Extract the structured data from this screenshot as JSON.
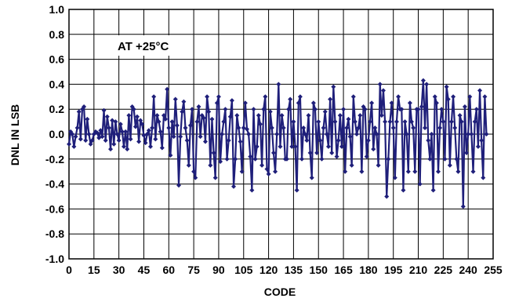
{
  "chart_data": {
    "type": "line",
    "title": "",
    "annotation": "AT +25°C",
    "xlabel": "CODE",
    "ylabel": "DNL IN LSB",
    "xlim": [
      0,
      255
    ],
    "ylim": [
      -1.0,
      1.0
    ],
    "grid": true,
    "line_color": "#1f1f7a",
    "x_ticks": [
      "0",
      "15",
      "30",
      "45",
      "60",
      "75",
      "90",
      "105",
      "120",
      "135",
      "150",
      "165",
      "180",
      "195",
      "210",
      "225",
      "240",
      "255"
    ],
    "y_ticks": [
      "1.0",
      "0.8",
      "0.6",
      "0.4",
      "0.2",
      "0.0",
      "-0.2",
      "-0.4",
      "-0.6",
      "-0.8",
      "-1.0"
    ],
    "series": [
      {
        "values": [
          -0.08,
          0.02,
          0.0,
          -0.1,
          -0.02,
          0.05,
          0.18,
          -0.04,
          0.2,
          0.22,
          -0.05,
          0.12,
          0.0,
          -0.08,
          -0.05,
          0.0,
          0.02,
          0.01,
          -0.03,
          0.03,
          -0.02,
          0.19,
          -0.05,
          0.14,
          0.05,
          -0.12,
          0.11,
          -0.08,
          0.1,
          0.0,
          -0.05,
          0.08,
          0.02,
          -0.1,
          0.02,
          -0.12,
          0.15,
          -0.04,
          0.22,
          0.2,
          0.06,
          0.14,
          -0.06,
          0.11,
          0.08,
          -0.01,
          -0.07,
          0.0,
          0.03,
          -0.1,
          0.05,
          0.3,
          -0.04,
          0.15,
          0.1,
          0.02,
          -0.11,
          0.15,
          0.12,
          0.36,
          0.05,
          -0.17,
          0.1,
          -0.02,
          0.28,
          0.07,
          -0.41,
          -0.02,
          0.18,
          0.26,
          0.05,
          -0.05,
          -0.25,
          0.07,
          0.2,
          -0.3,
          -0.35,
          0.1,
          0.22,
          -0.02,
          0.15,
          0.13,
          -0.06,
          0.3,
          0.18,
          -0.25,
          0.12,
          -0.15,
          -0.35,
          0.25,
          0.3,
          -0.22,
          0.0,
          0.1,
          0.2,
          -0.2,
          -0.05,
          0.14,
          0.27,
          -0.42,
          -0.2,
          0.15,
          0.05,
          -0.06,
          -0.3,
          0.05,
          0.25,
          0.04,
          0.0,
          -0.18,
          -0.45,
          0.2,
          -0.2,
          -0.1,
          0.15,
          0.08,
          -0.25,
          0.2,
          0.3,
          -0.28,
          -0.32,
          0.18,
          0.05,
          -0.15,
          -0.3,
          0.0,
          0.4,
          -0.1,
          0.15,
          0.05,
          -0.2,
          -0.2,
          0.2,
          0.28,
          -0.1,
          0.1,
          -0.1,
          -0.45,
          0.25,
          0.3,
          -0.2,
          0.05,
          0.0,
          -0.05,
          0.15,
          -0.15,
          -0.35,
          0.25,
          0.2,
          -0.15,
          0.1,
          -0.05,
          -0.2,
          0.05,
          0.18,
          0.0,
          -0.1,
          0.28,
          -0.15,
          0.38,
          0.1,
          -0.18,
          -0.05,
          0.15,
          -0.1,
          0.2,
          -0.3,
          0.05,
          0.12,
          -0.02,
          -0.25,
          0.3,
          0.1,
          0.0,
          0.05,
          0.15,
          -0.3,
          0.22,
          0.2,
          -0.18,
          -0.05,
          0.1,
          0.25,
          -0.12,
          0.05,
          0.0,
          -0.25,
          0.4,
          0.15,
          0.35,
          0.1,
          -0.5,
          -0.2,
          0.1,
          0.25,
          0.05,
          -0.35,
          0.1,
          0.3,
          0.2,
          0.2,
          -0.45,
          0.1,
          0.0,
          -0.3,
          0.25,
          0.1,
          0.05,
          -0.3,
          0.2,
          0.2,
          -0.4,
          0.22,
          0.43,
          0.05,
          0.4,
          -0.05,
          -0.2,
          0.0,
          -0.45,
          0.3,
          0.25,
          -0.3,
          0.05,
          0.2,
          0.1,
          -0.2,
          0.38,
          0.28,
          -0.25,
          0.1,
          0.3,
          0.05,
          -0.2,
          -0.3,
          0.15,
          0.1,
          -0.58,
          0.22,
          -0.15,
          0.0,
          0.3,
          0.0,
          -0.3,
          0.1,
          0.2,
          -0.1,
          0.35,
          -0.05,
          -0.35,
          0.3,
          0.0
        ]
      }
    ]
  }
}
